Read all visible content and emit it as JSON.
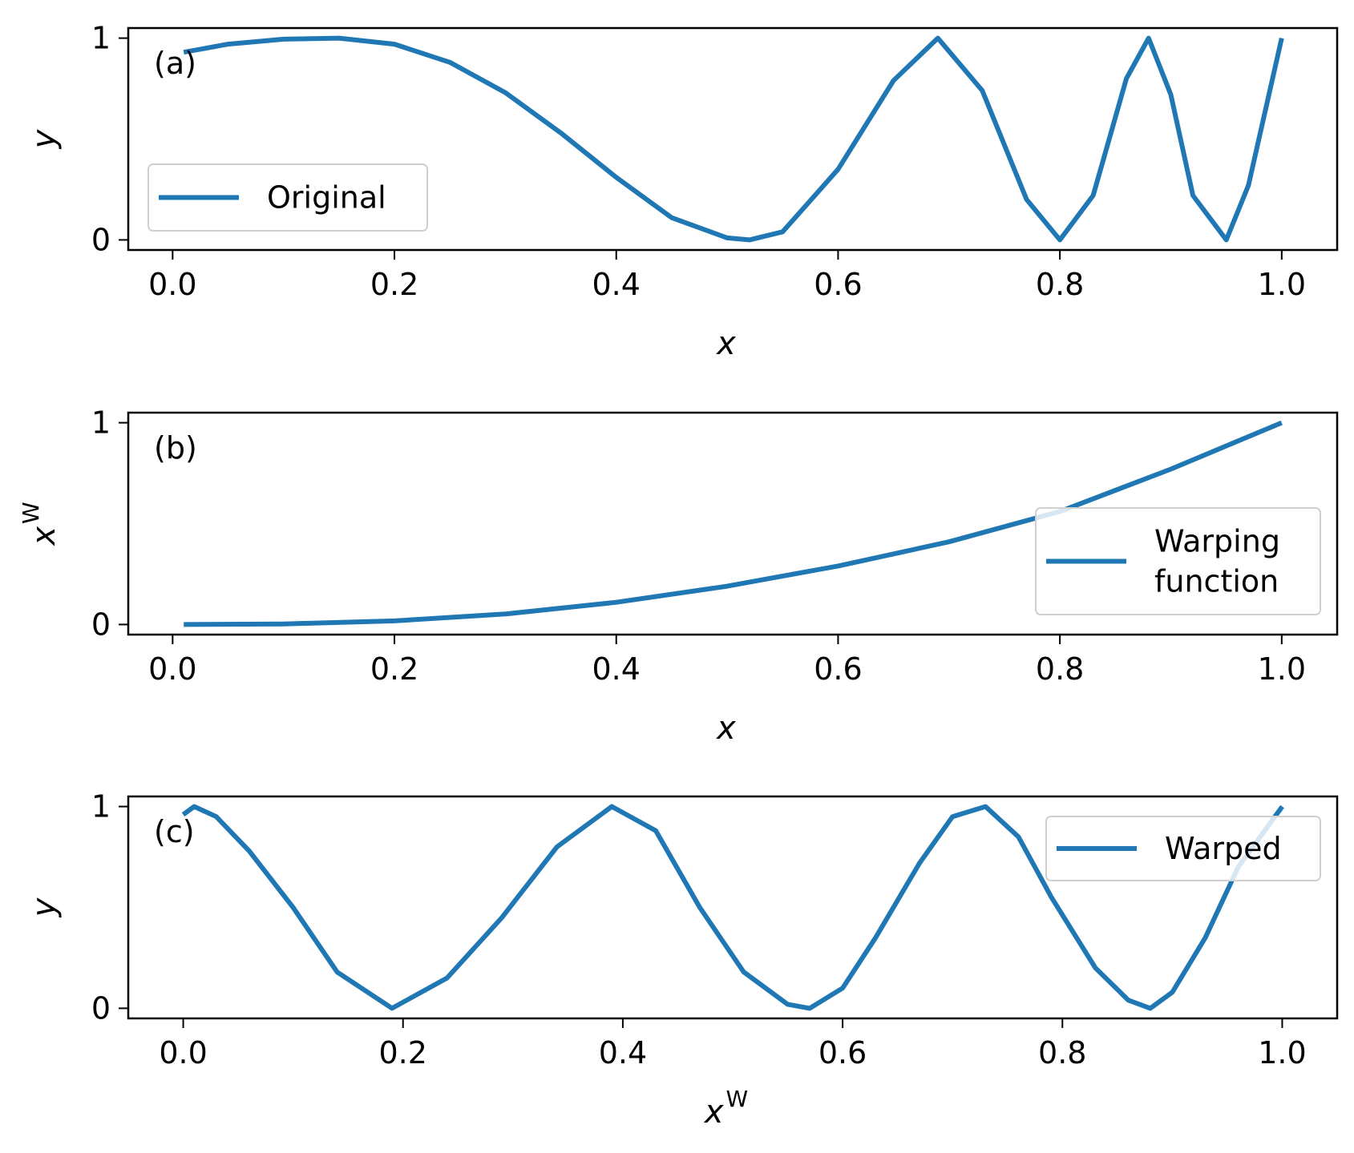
{
  "chart_data": [
    {
      "type": "line",
      "panel_label": "(a)",
      "xlabel": "x",
      "xlabel_sup": "",
      "ylabel": "y",
      "ylabel_sup": "",
      "xlim": [
        -0.04,
        1.05
      ],
      "ylim": [
        -0.05,
        1.05
      ],
      "xticks": [
        0.0,
        0.2,
        0.4,
        0.6,
        0.8,
        1.0
      ],
      "xtick_labels": [
        "0.0",
        "0.2",
        "0.4",
        "0.6",
        "0.8",
        "1.0"
      ],
      "yticks": [
        0,
        1
      ],
      "ytick_labels": [
        "0",
        "1"
      ],
      "legend": {
        "position": "lower-left",
        "entries": [
          "Original"
        ]
      },
      "series": [
        {
          "name": "Original",
          "color": "#1f77b4",
          "x": [
            0.01,
            0.05,
            0.1,
            0.15,
            0.2,
            0.25,
            0.3,
            0.35,
            0.4,
            0.45,
            0.5,
            0.52,
            0.55,
            0.6,
            0.65,
            0.69,
            0.73,
            0.77,
            0.8,
            0.83,
            0.86,
            0.88,
            0.9,
            0.92,
            0.95,
            0.97,
            1.0
          ],
          "y": [
            0.93,
            0.97,
            0.995,
            1.0,
            0.97,
            0.88,
            0.73,
            0.53,
            0.31,
            0.11,
            0.01,
            0.0,
            0.04,
            0.35,
            0.79,
            1.0,
            0.74,
            0.2,
            0.0,
            0.22,
            0.8,
            1.0,
            0.72,
            0.22,
            0.0,
            0.27,
            1.0
          ]
        }
      ]
    },
    {
      "type": "line",
      "panel_label": "(b)",
      "xlabel": "x",
      "xlabel_sup": "",
      "ylabel": "x",
      "ylabel_sup": "W",
      "xlim": [
        -0.04,
        1.05
      ],
      "ylim": [
        -0.05,
        1.05
      ],
      "xticks": [
        0.0,
        0.2,
        0.4,
        0.6,
        0.8,
        1.0
      ],
      "xtick_labels": [
        "0.0",
        "0.2",
        "0.4",
        "0.6",
        "0.8",
        "1.0"
      ],
      "yticks": [
        0,
        1
      ],
      "ytick_labels": [
        "0",
        "1"
      ],
      "legend": {
        "position": "right",
        "entries": [
          "Warping function"
        ],
        "entry_lines": [
          "Warping",
          "function"
        ]
      },
      "series": [
        {
          "name": "Warping function",
          "color": "#1f77b4",
          "x": [
            0.01,
            0.1,
            0.2,
            0.3,
            0.4,
            0.5,
            0.6,
            0.7,
            0.8,
            0.9,
            1.0
          ],
          "y": [
            0.0,
            0.003,
            0.018,
            0.052,
            0.11,
            0.19,
            0.29,
            0.41,
            0.56,
            0.77,
            1.0
          ]
        }
      ]
    },
    {
      "type": "line",
      "panel_label": "(c)",
      "xlabel": "x",
      "xlabel_sup": "W",
      "ylabel": "y",
      "ylabel_sup": "",
      "xlim": [
        -0.05,
        1.05
      ],
      "ylim": [
        -0.05,
        1.05
      ],
      "xticks": [
        0.0,
        0.2,
        0.4,
        0.6,
        0.8,
        1.0
      ],
      "xtick_labels": [
        "0.0",
        "0.2",
        "0.4",
        "0.6",
        "0.8",
        "1.0"
      ],
      "yticks": [
        0,
        1
      ],
      "ytick_labels": [
        "0",
        "1"
      ],
      "legend": {
        "position": "upper-right",
        "entries": [
          "Warped"
        ]
      },
      "series": [
        {
          "name": "Warped",
          "color": "#1f77b4",
          "x": [
            0.0,
            0.01,
            0.03,
            0.06,
            0.1,
            0.14,
            0.19,
            0.24,
            0.29,
            0.34,
            0.39,
            0.43,
            0.47,
            0.51,
            0.55,
            0.57,
            0.6,
            0.63,
            0.67,
            0.7,
            0.73,
            0.76,
            0.79,
            0.83,
            0.86,
            0.88,
            0.9,
            0.93,
            0.96,
            1.0
          ],
          "y": [
            0.96,
            1.0,
            0.95,
            0.78,
            0.5,
            0.18,
            0.0,
            0.15,
            0.45,
            0.8,
            1.0,
            0.88,
            0.5,
            0.18,
            0.02,
            0.0,
            0.1,
            0.35,
            0.72,
            0.95,
            1.0,
            0.85,
            0.55,
            0.2,
            0.04,
            0.0,
            0.08,
            0.35,
            0.7,
            1.0
          ]
        }
      ]
    }
  ]
}
